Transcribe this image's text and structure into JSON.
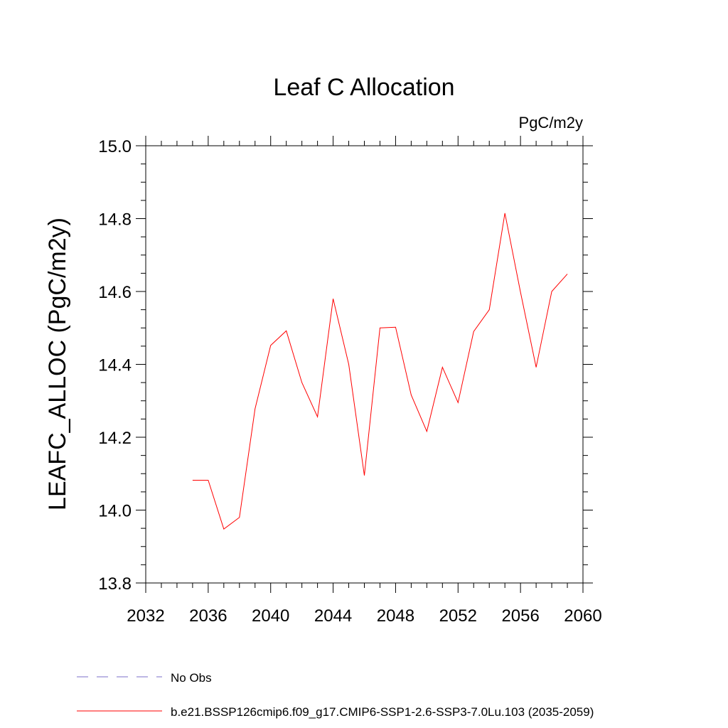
{
  "chart_data": {
    "type": "line",
    "title": "Leaf C Allocation",
    "units_label": "PgC/m2y",
    "ylabel": "LEAFC_ALLOC  (PgC/m2y)",
    "xlabel": "",
    "xlim": [
      2032,
      2060
    ],
    "ylim": [
      13.8,
      15.0
    ],
    "x_ticks": [
      2032,
      2036,
      2040,
      2044,
      2048,
      2052,
      2056,
      2060
    ],
    "y_ticks": [
      13.8,
      14.0,
      14.2,
      14.4,
      14.6,
      14.8,
      15.0
    ],
    "x_tick_labels": [
      "2032",
      "2036",
      "2040",
      "2044",
      "2048",
      "2052",
      "2056",
      "2060"
    ],
    "y_tick_labels": [
      "13.8",
      "14.0",
      "14.2",
      "14.4",
      "14.6",
      "14.8",
      "15.0"
    ],
    "grid": false,
    "legend_position": "bottom",
    "series": [
      {
        "name": "b.e21.BSSP126cmip6.f09_g17.CMIP6-SSP1-2.6-SSP3-7.0Lu.103 (2035-2059)",
        "color": "#ff0000",
        "style": "solid",
        "x": [
          2035,
          2036,
          2037,
          2038,
          2039,
          2040,
          2041,
          2042,
          2043,
          2044,
          2045,
          2046,
          2047,
          2048,
          2049,
          2050,
          2051,
          2052,
          2053,
          2054,
          2055,
          2056,
          2057,
          2058,
          2059
        ],
        "y": [
          14.082,
          14.082,
          13.948,
          13.98,
          14.278,
          14.452,
          14.492,
          14.35,
          14.256,
          14.58,
          14.4,
          14.095,
          14.5,
          14.502,
          14.316,
          14.216,
          14.392,
          14.295,
          14.49,
          14.55,
          14.815,
          14.598,
          14.392,
          14.6,
          14.648
        ]
      },
      {
        "name": "No Obs",
        "color": "#7b6fc9",
        "style": "dashed",
        "x": [],
        "y": []
      }
    ]
  }
}
